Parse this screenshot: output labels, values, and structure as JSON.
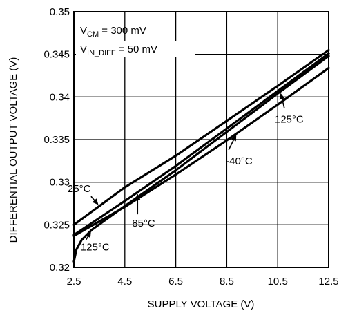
{
  "chart_data": {
    "type": "line",
    "xlabel": "SUPPLY VOLTAGE (V)",
    "ylabel": "DIFFERENTIAL OUTPUT VOLTAGE (V)",
    "xlim": [
      2.5,
      12.5
    ],
    "ylim": [
      0.32,
      0.35
    ],
    "x_ticks": [
      "2.5",
      "4.5",
      "6.5",
      "8.5",
      "10.5",
      "12.5"
    ],
    "y_ticks": [
      "0.32",
      "0.325",
      "0.33",
      "0.335",
      "0.34",
      "0.345",
      "0.35"
    ],
    "grid": true,
    "conditions": {
      "vcm": {
        "main": "V",
        "sub": "CM",
        "rest": " = 300 mV"
      },
      "vin": {
        "main": "V",
        "sub": "IN_DIFF",
        "rest": " = 50 mV"
      }
    },
    "series": [
      {
        "name": "25°C",
        "x": [
          2.5,
          4.5,
          6.5,
          8.5,
          10.5,
          12.5
        ],
        "y": [
          0.325,
          0.3294,
          0.3331,
          0.3372,
          0.3413,
          0.3455
        ]
      },
      {
        "name": "85°C",
        "x": [
          2.5,
          4.5,
          6.5,
          8.5,
          10.5,
          12.5
        ],
        "y": [
          0.3238,
          0.3278,
          0.3319,
          0.3363,
          0.3407,
          0.3451
        ]
      },
      {
        "name": "-40°C",
        "x": [
          2.5,
          4.5,
          6.5,
          8.5,
          10.5,
          12.5
        ],
        "y": [
          0.3237,
          0.3271,
          0.3309,
          0.3349,
          0.3391,
          0.3434
        ]
      },
      {
        "name": "125°C",
        "x": [
          2.5,
          2.6,
          2.8,
          3.2,
          3.8,
          4.5,
          5.5,
          6.5,
          8.5,
          10.5,
          12.5
        ],
        "y": [
          0.3207,
          0.3221,
          0.3232,
          0.3244,
          0.3257,
          0.3272,
          0.3293,
          0.3314,
          0.3359,
          0.3404,
          0.3448
        ]
      }
    ],
    "annotations": [
      {
        "label": "25°C",
        "series": "25°C",
        "at_x": 3.5
      },
      {
        "label": "85°C",
        "series": "85°C",
        "at_x": 5.0
      },
      {
        "label": "-40°C",
        "series": "-40°C",
        "at_x": 8.9
      },
      {
        "label": "125°C",
        "series": "125°C",
        "at_x": 10.6
      },
      {
        "label": "125°C",
        "series": "125°C",
        "at_x": 3.2
      }
    ]
  }
}
